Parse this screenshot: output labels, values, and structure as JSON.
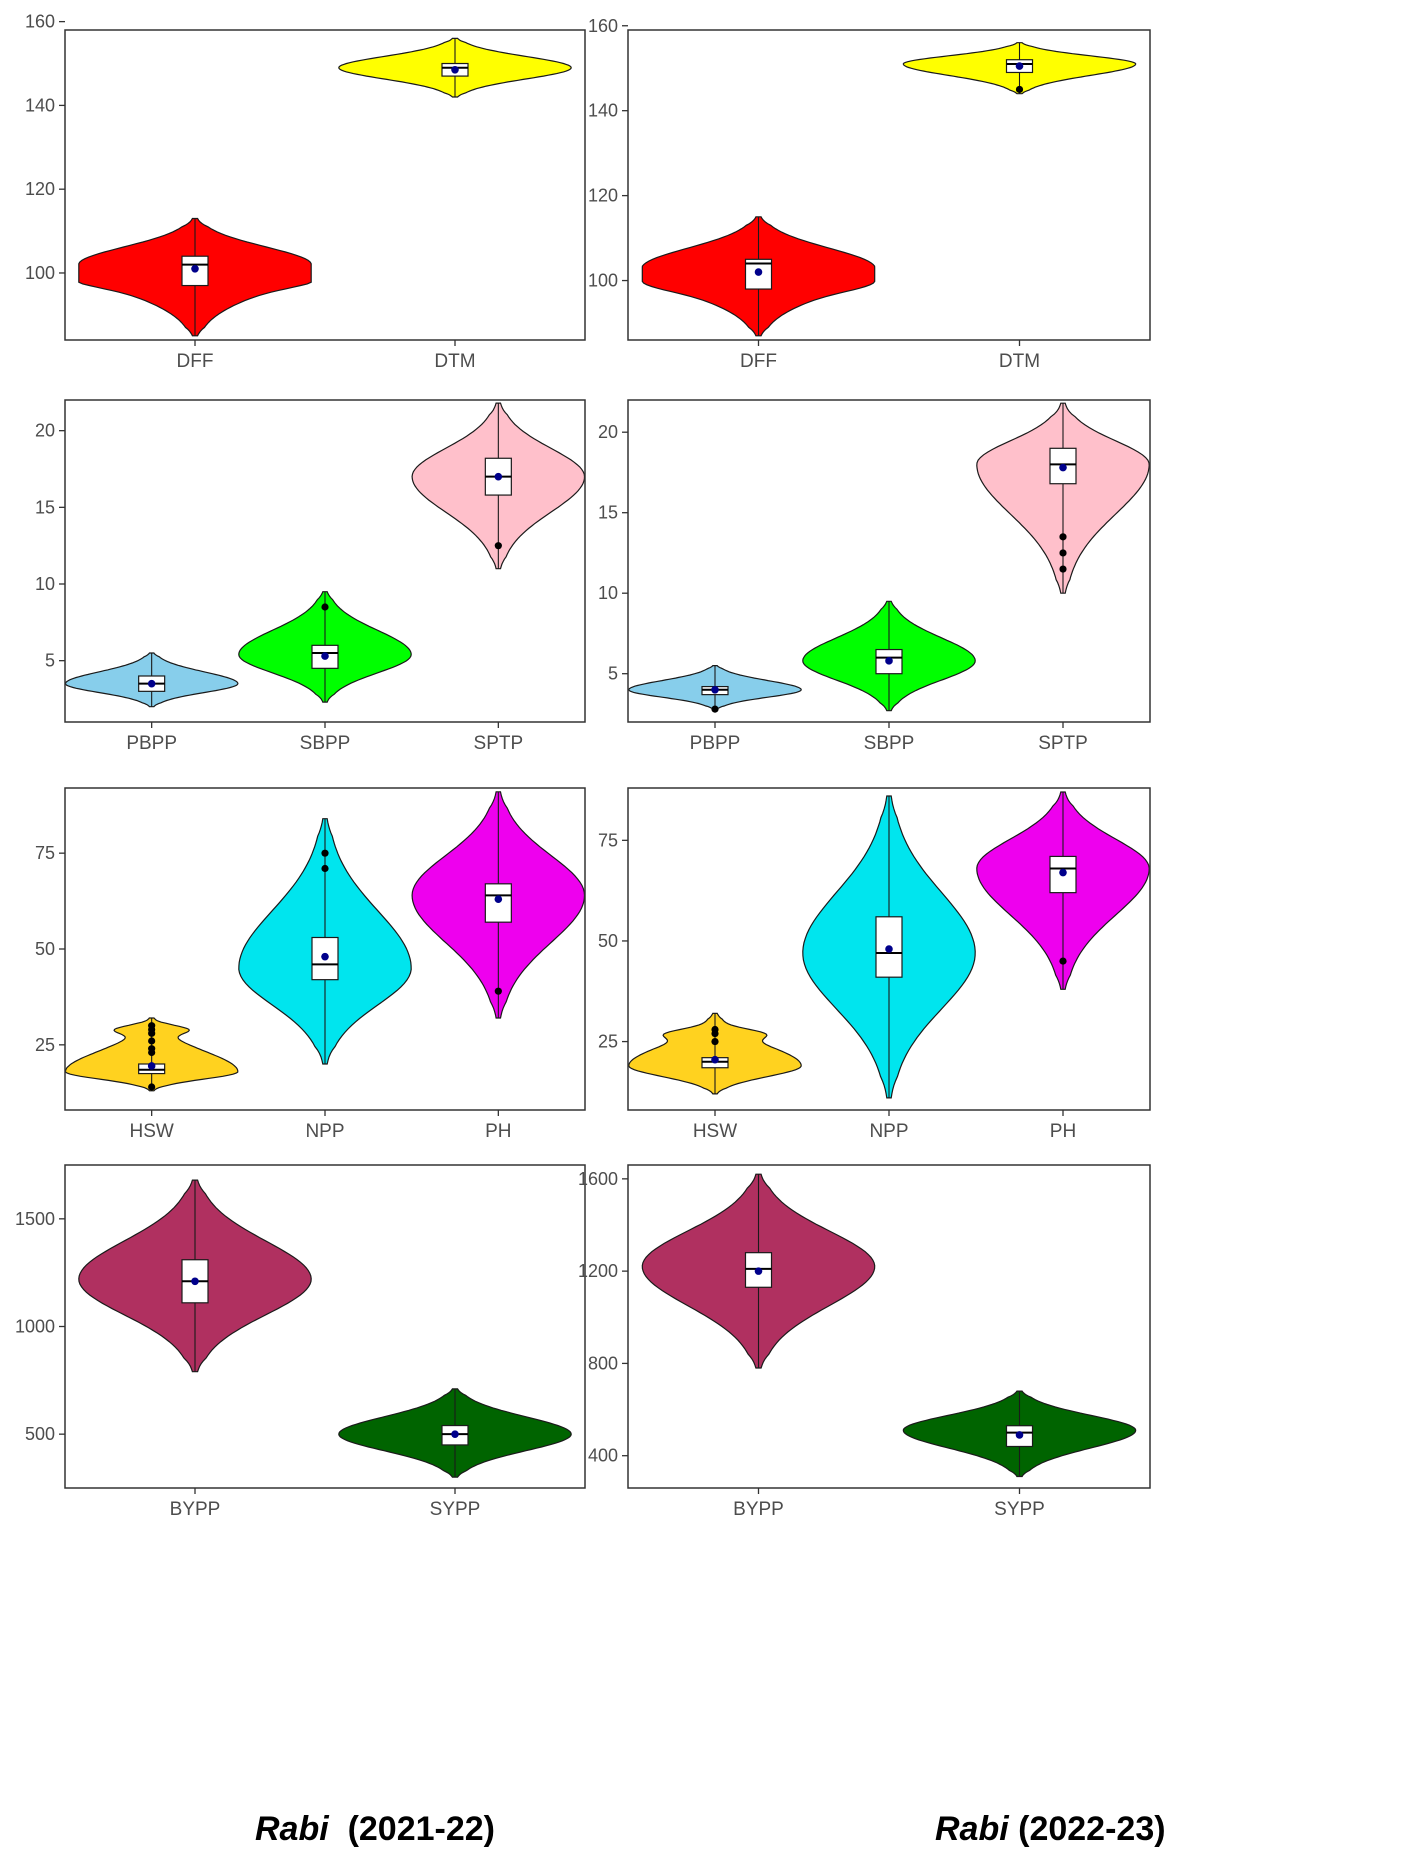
{
  "chart_data": [
    {
      "type": "violin",
      "column": "left",
      "row": 1,
      "categories": [
        "DFF",
        "DTM"
      ],
      "ylim": [
        84,
        158
      ],
      "yticks": [
        100,
        120,
        140,
        160
      ],
      "series": [
        {
          "name": "DFF",
          "color": "#ff0000",
          "min": 85,
          "max": 113,
          "q1": 97,
          "median": 102,
          "q3": 104,
          "mean": 101,
          "outliers": [],
          "mode": 102,
          "bulges": [
            [
              98,
              0.2
            ]
          ]
        },
        {
          "name": "DTM",
          "color": "#ffff00",
          "min": 142,
          "max": 156,
          "q1": 147,
          "median": 149,
          "q3": 150,
          "mean": 148.5,
          "outliers": [],
          "mode": 149
        }
      ]
    },
    {
      "type": "violin",
      "column": "right",
      "row": 1,
      "categories": [
        "DFF",
        "DTM"
      ],
      "ylim": [
        86,
        159
      ],
      "yticks": [
        100,
        120,
        140,
        160
      ],
      "series": [
        {
          "name": "DFF",
          "color": "#ff0000",
          "min": 87,
          "max": 115,
          "q1": 98,
          "median": 104,
          "q3": 105,
          "mean": 102,
          "outliers": [],
          "mode": 103,
          "bulges": [
            [
              99,
              0.15
            ]
          ]
        },
        {
          "name": "DTM",
          "color": "#ffff00",
          "min": 144,
          "max": 156,
          "q1": 149,
          "median": 151,
          "q3": 152,
          "mean": 150.5,
          "outliers": [
            145
          ],
          "mode": 151
        }
      ]
    },
    {
      "type": "violin",
      "column": "left",
      "row": 2,
      "categories": [
        "PBPP",
        "SBPP",
        "SPTP"
      ],
      "ylim": [
        1,
        22
      ],
      "yticks": [
        5,
        10,
        15,
        20
      ],
      "series": [
        {
          "name": "PBPP",
          "color": "#87ceeb",
          "min": 2,
          "max": 5.5,
          "q1": 3,
          "median": 3.5,
          "q3": 4,
          "mean": 3.5,
          "outliers": [],
          "mode": 3.5
        },
        {
          "name": "SBPP",
          "color": "#00ff00",
          "min": 2.3,
          "max": 9.5,
          "q1": 4.5,
          "median": 5.5,
          "q3": 6,
          "mean": 5.3,
          "outliers": [
            8.5
          ],
          "mode": 5.4
        },
        {
          "name": "SPTP",
          "color": "#ffc0cb",
          "min": 11,
          "max": 21.8,
          "q1": 15.8,
          "median": 17,
          "q3": 18.2,
          "mean": 17,
          "outliers": [
            12.5
          ],
          "mode": 17
        }
      ]
    },
    {
      "type": "violin",
      "column": "right",
      "row": 2,
      "categories": [
        "PBPP",
        "SBPP",
        "SPTP"
      ],
      "ylim": [
        2,
        22
      ],
      "yticks": [
        5,
        10,
        15,
        20
      ],
      "series": [
        {
          "name": "PBPP",
          "color": "#87ceeb",
          "min": 2.8,
          "max": 5.5,
          "q1": 3.7,
          "median": 4,
          "q3": 4.2,
          "mean": 4,
          "outliers": [
            2.8
          ],
          "mode": 4
        },
        {
          "name": "SBPP",
          "color": "#00ff00",
          "min": 2.7,
          "max": 9.5,
          "q1": 5,
          "median": 6,
          "q3": 6.5,
          "mean": 5.8,
          "outliers": [],
          "mode": 5.8
        },
        {
          "name": "SPTP",
          "color": "#ffc0cb",
          "min": 10,
          "max": 21.8,
          "q1": 16.8,
          "median": 18,
          "q3": 19,
          "mean": 17.8,
          "outliers": [
            13.5,
            12.5,
            11.5
          ],
          "mode": 18
        }
      ]
    },
    {
      "type": "violin",
      "column": "left",
      "row": 3,
      "categories": [
        "HSW",
        "NPP",
        "PH"
      ],
      "ylim": [
        8,
        92
      ],
      "yticks": [
        25,
        50,
        75
      ],
      "series": [
        {
          "name": "HSW",
          "color": "#ffd21f",
          "min": 13,
          "max": 32,
          "q1": 17.5,
          "median": 18.5,
          "q3": 20,
          "mean": 19.5,
          "outliers": [
            14,
            23,
            24,
            26,
            28,
            29,
            30
          ],
          "mode": 18,
          "bulges": [
            [
              29,
              0.3
            ]
          ]
        },
        {
          "name": "NPP",
          "color": "#00e5ee",
          "min": 20,
          "max": 84,
          "q1": 42,
          "median": 46,
          "q3": 53,
          "mean": 48,
          "outliers": [
            71,
            75
          ],
          "mode": 45
        },
        {
          "name": "PH",
          "color": "#ee00ee",
          "min": 32,
          "max": 91,
          "q1": 57,
          "median": 64,
          "q3": 67,
          "mean": 63,
          "outliers": [
            39
          ],
          "mode": 64
        }
      ]
    },
    {
      "type": "violin",
      "column": "right",
      "row": 3,
      "categories": [
        "HSW",
        "NPP",
        "PH"
      ],
      "ylim": [
        8,
        88
      ],
      "yticks": [
        25,
        50,
        75
      ],
      "series": [
        {
          "name": "HSW",
          "color": "#ffd21f",
          "min": 12,
          "max": 32,
          "q1": 18.5,
          "median": 20,
          "q3": 21,
          "mean": 20.5,
          "outliers": [
            25,
            27,
            28
          ],
          "mode": 19,
          "bulges": [
            [
              27,
              0.3
            ]
          ]
        },
        {
          "name": "NPP",
          "color": "#00e5ee",
          "min": 11,
          "max": 86,
          "q1": 41,
          "median": 47,
          "q3": 56,
          "mean": 48,
          "outliers": [],
          "mode": 47
        },
        {
          "name": "PH",
          "color": "#ee00ee",
          "min": 38,
          "max": 87,
          "q1": 62,
          "median": 68,
          "q3": 71,
          "mean": 67,
          "outliers": [
            45
          ],
          "mode": 68
        }
      ]
    },
    {
      "type": "violin",
      "column": "left",
      "row": 4,
      "categories": [
        "BYPP",
        "SYPP"
      ],
      "ylim": [
        250,
        1750
      ],
      "yticks": [
        500,
        1000,
        1500
      ],
      "series": [
        {
          "name": "BYPP",
          "color": "#b03060",
          "min": 790,
          "max": 1680,
          "q1": 1110,
          "median": 1210,
          "q3": 1310,
          "mean": 1210,
          "outliers": [],
          "mode": 1220
        },
        {
          "name": "SYPP",
          "color": "#006400",
          "min": 300,
          "max": 710,
          "q1": 450,
          "median": 500,
          "q3": 540,
          "mean": 500,
          "outliers": [],
          "mode": 500
        }
      ]
    },
    {
      "type": "violin",
      "column": "right",
      "row": 4,
      "categories": [
        "BYPP",
        "SYPP"
      ],
      "ylim": [
        260,
        1660
      ],
      "yticks": [
        400,
        800,
        1200,
        1600
      ],
      "series": [
        {
          "name": "BYPP",
          "color": "#b03060",
          "min": 780,
          "max": 1620,
          "q1": 1130,
          "median": 1210,
          "q3": 1280,
          "mean": 1200,
          "outliers": [],
          "mode": 1220
        },
        {
          "name": "SYPP",
          "color": "#006400",
          "min": 310,
          "max": 680,
          "q1": 440,
          "median": 500,
          "q3": 530,
          "mean": 490,
          "outliers": [],
          "mode": 510
        }
      ]
    }
  ],
  "captions": {
    "left": {
      "italic": "Rabi",
      "rest": "  (2021-22)"
    },
    "right": {
      "italic": "Rabi",
      "rest": " (2022-23)"
    }
  }
}
